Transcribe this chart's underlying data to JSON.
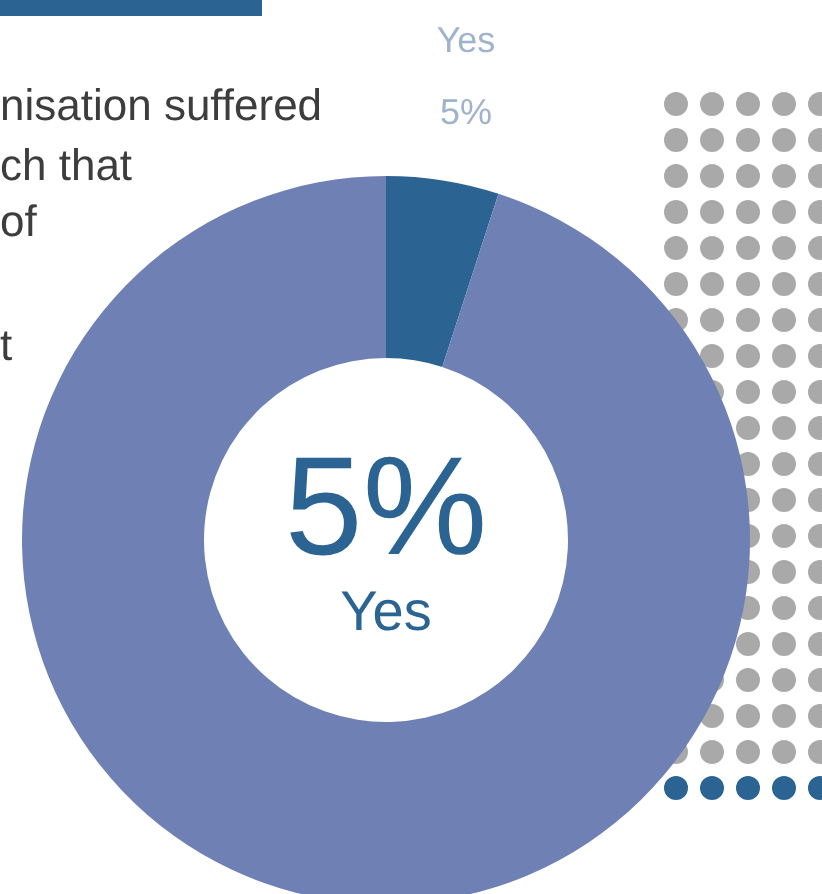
{
  "chart_data": {
    "type": "donut",
    "categories": [
      "Yes",
      null
    ],
    "values": [
      5,
      95
    ],
    "colors": [
      "#2b6493",
      "#6f81b4"
    ],
    "value_labels": [
      "5%",
      null
    ],
    "legend": false,
    "annotations": [
      "nisation suffered",
      "ch that",
      "of",
      "t"
    ]
  }
}
